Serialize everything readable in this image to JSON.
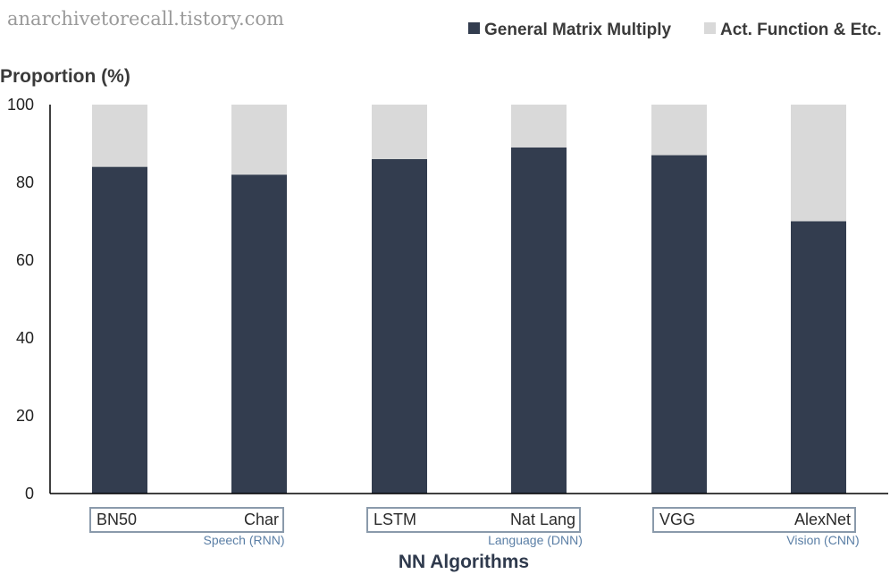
{
  "watermark": "anarchivetorecall.tistory.com",
  "colors": {
    "gemm": "#333d4f",
    "act": "#d9d9d9",
    "group_box": "#8a9aab",
    "group_label": "#5b7fa6"
  },
  "chart_data": {
    "type": "bar",
    "stacked": true,
    "categories": [
      "BN50",
      "Char",
      "LSTM",
      "Nat Lang",
      "VGG",
      "AlexNet"
    ],
    "groups": [
      {
        "label": "Speech (RNN)",
        "categories": [
          "BN50",
          "Char"
        ]
      },
      {
        "label": "Language (DNN)",
        "categories": [
          "LSTM",
          "Nat Lang"
        ]
      },
      {
        "label": "Vision (CNN)",
        "categories": [
          "VGG",
          "AlexNet"
        ]
      }
    ],
    "series": [
      {
        "name": "General Matrix Multiply",
        "values": [
          84,
          82,
          86,
          89,
          87,
          70
        ]
      },
      {
        "name": "Act. Function & Etc.",
        "values": [
          16,
          18,
          14,
          11,
          13,
          30
        ]
      }
    ],
    "title": "",
    "ylabel": "Proportion (%)",
    "xlabel": "NN Algorithms",
    "ylim": [
      0,
      100
    ],
    "yticks": [
      0,
      20,
      40,
      60,
      80,
      100
    ],
    "grid": false,
    "legend": "top-right"
  }
}
